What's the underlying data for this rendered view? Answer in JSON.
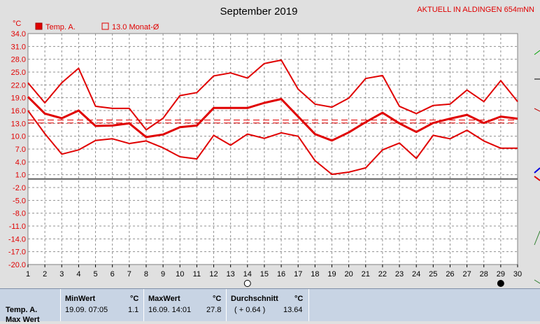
{
  "header": {
    "title": "September 2019",
    "station": "AKTUELL IN ALDINGEN 654mNN",
    "unit": "°C"
  },
  "legend": {
    "temp_label": "Temp. A.",
    "avg_label": "13.0 Monat-Ø"
  },
  "chart_data": {
    "type": "line",
    "title": "September 2019",
    "ylabel": "°C",
    "xlabel": "",
    "ylim": [
      -20,
      34
    ],
    "yticks": [
      "34.0",
      "31.0",
      "28.0",
      "25.0",
      "22.0",
      "19.0",
      "16.0",
      "13.0",
      "10.0",
      "7.0",
      "4.0",
      "1.0",
      "-2.0",
      "-5.0",
      "-8.0",
      "-11.0",
      "-14.0",
      "-17.0",
      "-20.0"
    ],
    "x": [
      1,
      2,
      3,
      4,
      5,
      6,
      7,
      8,
      9,
      10,
      11,
      12,
      13,
      14,
      15,
      16,
      17,
      18,
      19,
      20,
      21,
      22,
      23,
      24,
      25,
      26,
      27,
      28,
      29,
      30
    ],
    "grid": true,
    "series": [
      {
        "name": "Max",
        "color": "#e00000",
        "values": [
          22.5,
          17.8,
          22.5,
          25.9,
          17,
          16.5,
          16.5,
          11.5,
          14.2,
          19.5,
          20.2,
          24.1,
          24.8,
          23.6,
          27,
          27.8,
          21,
          17.5,
          16.8,
          18.9,
          23.5,
          24.2,
          17,
          15.3,
          17.2,
          17.5,
          20.8,
          18.1,
          23,
          18.1
        ]
      },
      {
        "name": "Temp. A.",
        "color": "#e00000",
        "values": [
          19.2,
          15.3,
          14.2,
          16,
          12.4,
          12.5,
          13,
          9.8,
          10.4,
          12.1,
          12.5,
          16.6,
          16.6,
          16.6,
          17.8,
          18.7,
          14.6,
          10.5,
          9,
          10.9,
          13.3,
          15.5,
          13,
          11,
          13.1,
          14.1,
          15,
          13.1,
          14.6,
          14.1
        ]
      },
      {
        "name": "Min",
        "color": "#e00000",
        "values": [
          16,
          10.6,
          5.8,
          6.8,
          9,
          9.4,
          8.3,
          8.9,
          7.3,
          5.2,
          4.7,
          10.2,
          7.9,
          10.5,
          9.5,
          10.8,
          10,
          4.3,
          1.1,
          1.6,
          2.6,
          6.8,
          8.4,
          4.8,
          10.2,
          9.4,
          11.4,
          8.9,
          7.2,
          7.2
        ]
      }
    ],
    "avg_lines": [
      13.1,
      13.8
    ],
    "moon_days": [
      14,
      29
    ]
  },
  "stats": {
    "row_label": "Temp. A.",
    "row_label_cut": "Max Wert",
    "min": {
      "header": "MinWert",
      "unit": "°C",
      "time": "19.09.  07:05",
      "value": "1.1"
    },
    "max": {
      "header": "MaxWert",
      "unit": "°C",
      "time": "16.09.  14:01",
      "value": "27.8"
    },
    "avg": {
      "header": "Durchschnitt",
      "unit": "°C",
      "delta": "( + 0.64 )",
      "value": "13.64"
    }
  },
  "colors": {
    "accent": "#e00000",
    "grid": "#909090",
    "zero_line": "#606060",
    "stats_bg": "#c8d4e4"
  }
}
